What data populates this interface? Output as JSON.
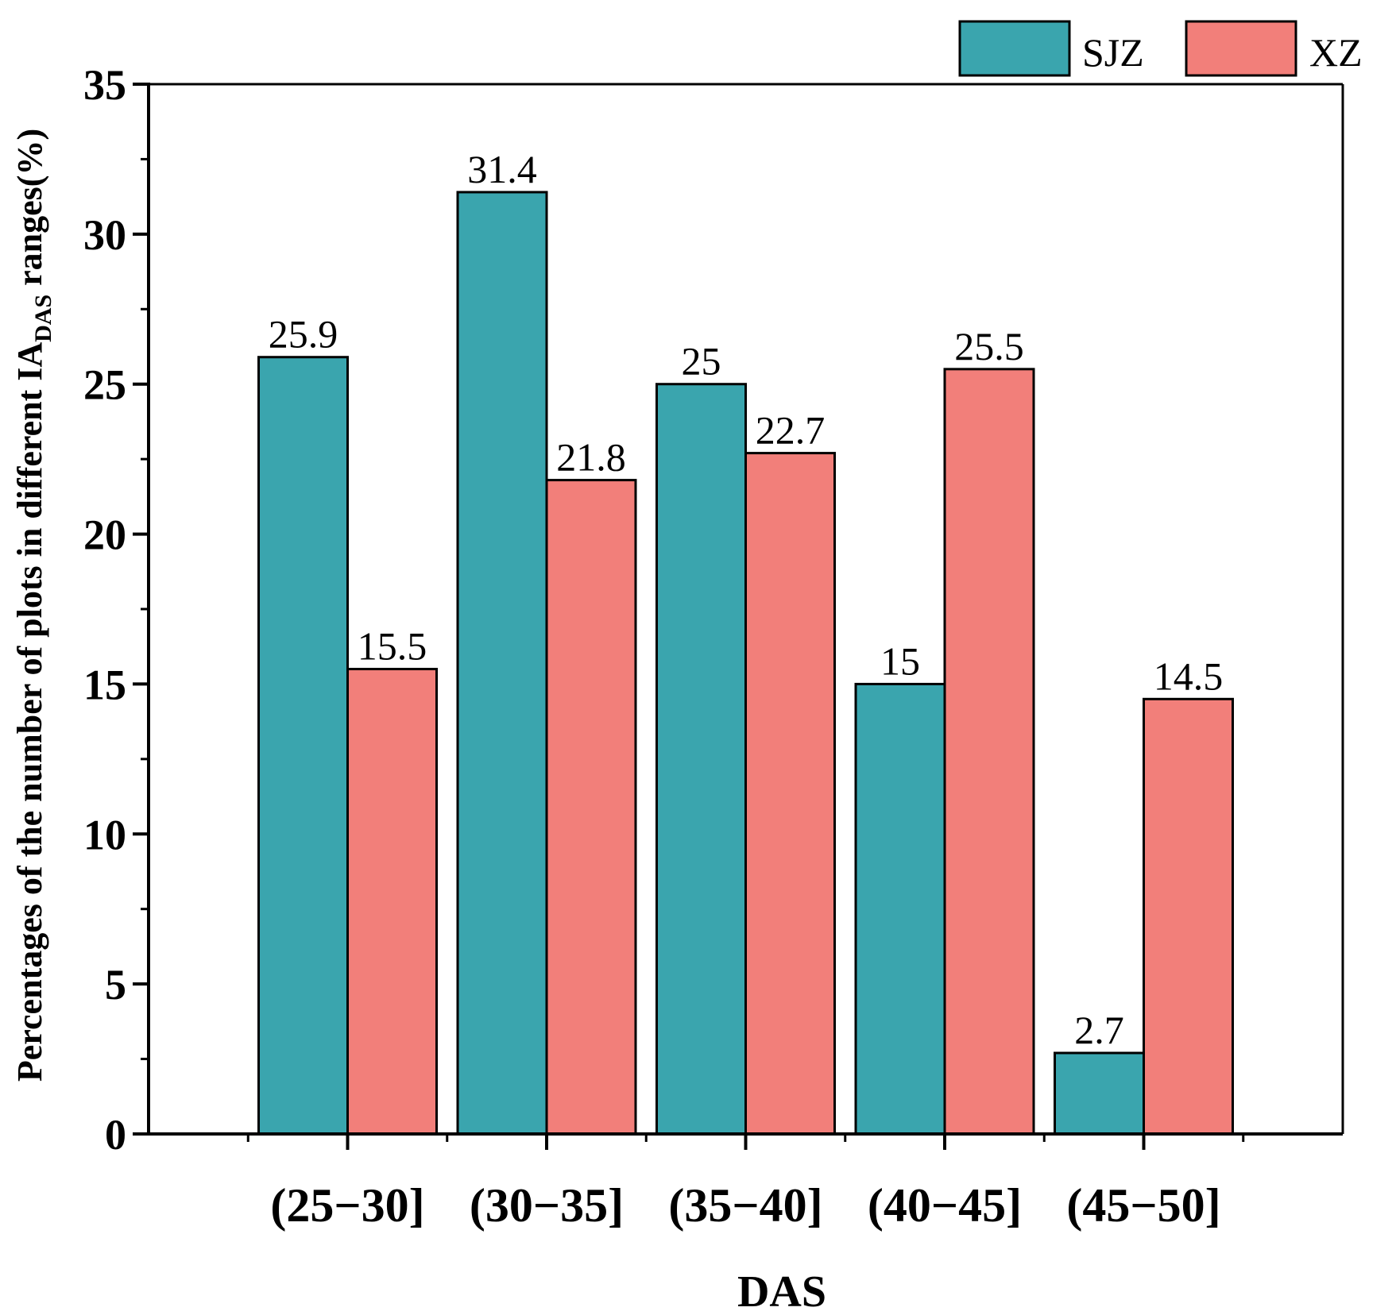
{
  "chart_data": {
    "type": "bar",
    "title": "",
    "xlabel": "DAS",
    "ylabel": {
      "prefix": "Percentages of the number of plots in different IA",
      "subscript": "DAS",
      "suffix": " ranges(%)"
    },
    "categories": [
      "(25−30]",
      "(30−35]",
      "(35−40]",
      "(40−45]",
      "(45−50]"
    ],
    "series": [
      {
        "name": "SJZ",
        "color": "#3aa5ae",
        "values": [
          25.9,
          31.4,
          25,
          15,
          2.7
        ],
        "labels": [
          "25.9",
          "31.4",
          "25",
          "15",
          "2.7"
        ]
      },
      {
        "name": "XZ",
        "color": "#f27f7a",
        "values": [
          15.5,
          21.8,
          22.7,
          25.5,
          14.5
        ],
        "labels": [
          "15.5",
          "21.8",
          "22.7",
          "25.5",
          "14.5"
        ]
      }
    ],
    "ylim": [
      0,
      35
    ],
    "yticks": [
      0,
      5,
      10,
      15,
      20,
      25,
      30,
      35
    ],
    "ytick_labels": [
      "0",
      "5",
      "10",
      "15",
      "20",
      "25",
      "30",
      "35"
    ],
    "legend_position": "top-right",
    "grid": false
  }
}
